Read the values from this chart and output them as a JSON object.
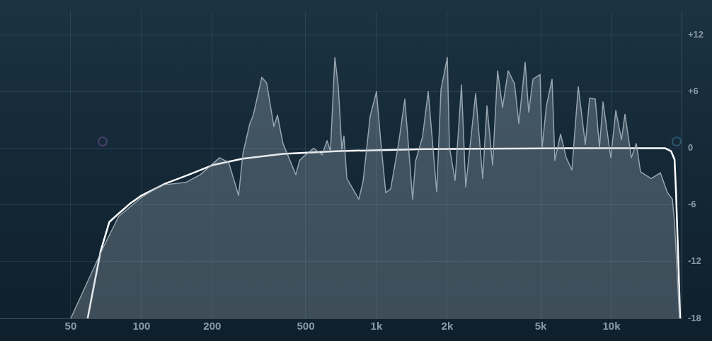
{
  "chart_data": {
    "type": "line",
    "log": "x",
    "grid": true,
    "legend": false,
    "marker": "none",
    "line_style": "solid",
    "xlim": [
      25,
      20000
    ],
    "ylim": [
      -18,
      14.5
    ],
    "xticks": [
      50,
      100,
      200,
      500,
      {
        "value": 1000,
        "label": "1k"
      },
      {
        "value": 2000,
        "label": "2k"
      },
      {
        "value": 5000,
        "label": "5k"
      },
      {
        "value": 10000,
        "label": "10k"
      }
    ],
    "yticks": [
      {
        "value": 12,
        "label": "+12"
      },
      {
        "value": 6,
        "label": "+6"
      },
      0,
      -6,
      -12,
      -18
    ],
    "series": [
      {
        "type": "area",
        "color": "#a9b6bf",
        "x": [
          50,
          69,
          80,
          100,
          121,
          155,
          178,
          215,
          235,
          259,
          270,
          289,
          299,
          325,
          341,
          366,
          379,
          400,
          454,
          470,
          493,
          540,
          587,
          616,
          637,
          665,
          688,
          712,
          727,
          748,
          841,
          877,
          940,
          1000,
          1043,
          1095,
          1149,
          1240,
          1320,
          1425,
          1465,
          1570,
          1660,
          1804,
          1881,
          2002,
          2044,
          2160,
          2300,
          2397,
          2642,
          2831,
          2952,
          3120,
          3276,
          3438,
          3634,
          3868,
          4033,
          4292,
          4443,
          4633,
          4965,
          5070,
          5285,
          5586,
          5743,
          6071,
          6418,
          6784,
          7221,
          7739,
          8068,
          8530,
          8891,
          9204,
          9933,
          10431,
          11026,
          11414,
          12146,
          12751,
          13293,
          14756,
          16140,
          17303,
          18166,
          18552,
          19470
        ],
        "values": [
          -18,
          -10.4,
          -7.2,
          -5.2,
          -3.9,
          -3.6,
          -2.8,
          -1.0,
          -1.5,
          -5.0,
          -0.6,
          2.6,
          3.5,
          7.5,
          6.9,
          2.3,
          3.5,
          0.5,
          -2.8,
          -1.3,
          -0.8,
          0,
          -0.7,
          0.8,
          -0.3,
          9.6,
          6.5,
          -0.1,
          1.3,
          -3.2,
          -5.4,
          -3.5,
          3.4,
          6.0,
          0.7,
          -4.7,
          -4.3,
          0.4,
          5.2,
          -5.4,
          -1.4,
          1.2,
          6.0,
          -4.6,
          6.2,
          9.6,
          0.1,
          -3.4,
          6.7,
          -4.1,
          5.8,
          -3.2,
          4.5,
          -1.8,
          8.2,
          4.3,
          8.2,
          6.8,
          2.6,
          9.1,
          3.8,
          7.3,
          7.8,
          0.1,
          4.5,
          7.3,
          -1.3,
          1.5,
          -1.0,
          -2.3,
          6.5,
          0.4,
          5.3,
          5.2,
          0.1,
          4.9,
          -1.0,
          4.0,
          0.9,
          3.6,
          -1.0,
          0.5,
          -2.5,
          -3.2,
          -2.6,
          -4.7,
          -5.4,
          -7.9,
          -18
        ]
      },
      {
        "type": "line",
        "color": "#ffffff",
        "x": [
          59,
          67,
          73,
          80,
          89,
          100,
          126,
          159,
          200,
          270,
          400,
          698,
          1603,
          6418,
          16944,
          17915,
          18552,
          18807,
          19200,
          19600
        ],
        "values": [
          -18,
          -10.9,
          -7.8,
          -6.9,
          -5.9,
          -5.0,
          -3.75,
          -2.8,
          -1.8,
          -1.1,
          -0.6,
          -0.3,
          -0.1,
          0,
          0,
          -0.3,
          -1.2,
          -4.5,
          -11.1,
          -18
        ]
      }
    ]
  }
}
